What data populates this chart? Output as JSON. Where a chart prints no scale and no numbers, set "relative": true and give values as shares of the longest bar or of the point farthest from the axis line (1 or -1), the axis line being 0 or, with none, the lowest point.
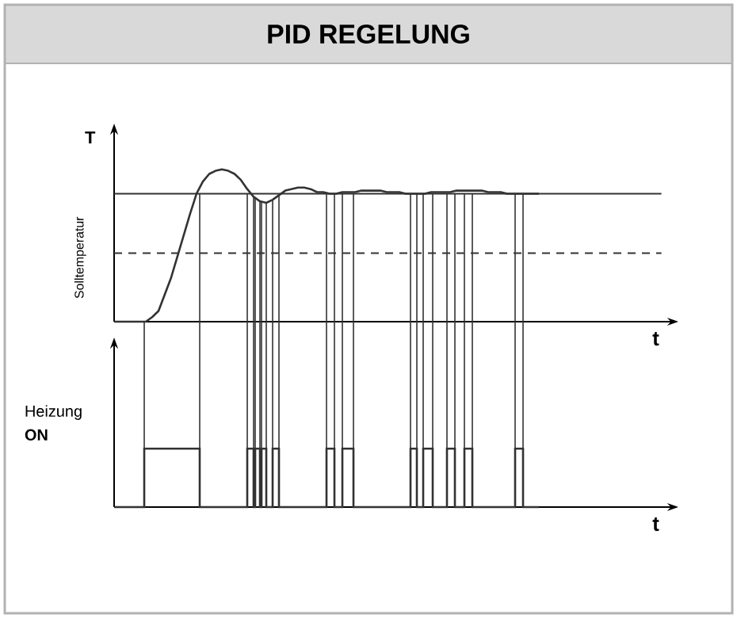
{
  "chart_data": [
    {
      "type": "line",
      "title": "PID REGELUNG",
      "xlabel": "t",
      "ylabel": "T",
      "relative": true,
      "marker": "none",
      "categories": [
        null,
        null,
        null,
        null,
        null,
        null,
        null,
        null,
        null,
        null,
        null,
        null,
        null,
        null,
        null,
        null,
        null,
        null,
        null,
        null,
        null,
        null,
        null,
        null,
        null,
        null,
        null,
        null,
        null,
        null,
        null,
        null,
        null,
        null,
        null,
        null,
        null,
        null,
        null,
        null,
        null,
        null,
        null,
        null,
        null,
        null,
        null,
        null,
        null,
        null,
        null,
        null,
        null,
        null,
        null,
        null,
        null,
        null,
        null,
        null,
        null,
        null,
        null,
        null,
        null,
        null,
        null,
        null
      ],
      "series": [
        {
          "color": "#333333",
          "values": [
            0,
            0,
            0,
            0,
            0,
            0,
            0.03,
            0.07,
            0.18,
            0.29,
            0.43,
            0.57,
            0.71,
            0.84,
            0.92,
            0.97,
            0.99,
            1,
            0.99,
            0.97,
            0.93,
            0.87,
            0.82,
            0.79,
            0.78,
            0.8,
            0.83,
            0.86,
            0.87,
            0.88,
            0.88,
            0.87,
            0.85,
            0.85,
            0.84,
            0.84,
            0.85,
            0.85,
            0.85,
            0.86,
            0.86,
            0.86,
            0.86,
            0.85,
            0.85,
            0.85,
            0.84,
            0.84,
            0.84,
            0.84,
            0.85,
            0.85,
            0.85,
            0.85,
            0.86,
            0.86,
            0.86,
            0.86,
            0.86,
            0.85,
            0.85,
            0.85,
            0.84,
            0.84,
            0.84,
            0.84,
            0.84,
            0.84
          ]
        }
      ],
      "ref_lines": [
        {
          "axis": "y",
          "value": 0.84,
          "label": "Solltemperatur",
          "color": "#333333",
          "line_style": "solid"
        },
        {
          "axis": "y",
          "value": 0.45,
          "color": "#333333",
          "line_style": "dashed"
        }
      ]
    },
    {
      "type": "step",
      "xlabel": "t",
      "ylabel": "Heizung **ON**",
      "relative": true,
      "marker": "none",
      "categories": [
        null,
        null,
        null,
        null,
        null,
        null,
        null,
        null,
        null,
        null,
        null,
        null,
        null,
        null,
        null,
        null,
        null,
        null,
        null,
        null,
        null,
        null,
        null,
        null,
        null,
        null,
        null,
        null,
        null,
        null,
        null,
        null,
        null,
        null,
        null,
        null,
        null,
        null,
        null,
        null,
        null,
        null,
        null,
        null,
        null,
        null,
        null,
        null,
        null,
        null,
        null,
        null,
        null,
        null,
        null,
        null,
        null,
        null,
        null,
        null,
        null,
        null,
        null,
        null,
        null,
        null,
        null,
        null,
        null,
        null,
        null,
        null,
        null,
        null,
        null,
        null,
        null,
        null,
        null,
        null,
        null,
        null,
        null,
        null,
        null,
        null,
        null,
        null,
        null,
        null,
        null,
        null,
        null,
        null,
        null,
        null,
        null,
        null,
        null,
        null,
        null,
        null,
        null,
        null,
        null,
        null,
        null,
        null,
        null,
        null,
        null,
        null,
        null,
        null,
        null,
        null,
        null,
        null,
        null,
        null,
        null,
        null,
        null,
        null,
        null,
        null,
        null,
        null,
        null,
        null,
        null,
        null,
        null,
        null,
        null,
        null,
        null,
        null,
        null,
        null,
        null,
        null,
        null,
        null,
        null,
        null,
        null,
        null,
        null,
        null,
        null,
        null,
        null,
        null,
        null,
        null,
        null,
        null,
        null,
        null,
        null,
        null,
        null,
        null,
        null,
        null,
        null,
        null,
        null,
        null,
        null,
        null,
        null,
        null,
        null,
        null,
        null,
        null,
        null,
        null,
        null,
        null,
        null,
        null,
        null,
        null,
        null,
        null,
        null,
        null,
        null,
        null,
        null,
        null,
        null,
        null,
        null,
        null,
        null,
        null,
        null,
        null,
        null,
        null,
        null,
        null,
        null,
        null,
        null,
        null,
        null,
        null,
        null,
        null,
        null,
        null,
        null,
        null,
        null,
        null,
        null,
        null,
        null,
        null,
        null,
        null,
        null,
        null,
        null,
        null,
        null,
        null,
        null,
        null,
        null,
        null,
        null,
        null,
        null,
        null,
        null,
        null,
        null,
        null,
        null,
        null,
        null,
        null,
        null,
        null,
        null,
        null,
        null,
        null,
        null,
        null,
        null,
        null,
        null,
        null,
        null,
        null,
        null,
        null,
        null,
        null,
        null,
        null,
        null
      ],
      "series": [
        {
          "color": "#333333",
          "values": [
            0,
            0,
            0,
            0,
            0,
            0,
            0,
            0,
            0,
            0,
            0,
            0,
            0,
            0,
            0,
            0,
            0,
            0,
            0,
            1,
            1,
            1,
            1,
            1,
            1,
            1,
            1,
            1,
            1,
            1,
            1,
            1,
            1,
            1,
            1,
            1,
            1,
            1,
            1,
            1,
            1,
            1,
            1,
            1,
            1,
            1,
            1,
            1,
            1,
            1,
            1,
            1,
            1,
            1,
            0,
            0,
            0,
            0,
            0,
            0,
            0,
            0,
            0,
            0,
            0,
            0,
            0,
            0,
            0,
            0,
            0,
            0,
            0,
            0,
            0,
            0,
            0,
            0,
            0,
            0,
            0,
            0,
            0,
            0,
            1,
            1,
            1,
            1,
            0,
            1,
            1,
            1,
            0,
            1,
            1,
            1,
            0,
            0,
            0,
            0,
            1,
            1,
            1,
            1,
            0,
            0,
            0,
            0,
            0,
            0,
            0,
            0,
            0,
            0,
            0,
            0,
            0,
            0,
            0,
            0,
            0,
            0,
            0,
            0,
            0,
            0,
            0,
            0,
            0,
            0,
            0,
            0,
            0,
            0,
            1,
            1,
            1,
            1,
            1,
            0,
            0,
            0,
            0,
            0,
            1,
            1,
            1,
            1,
            1,
            1,
            1,
            0,
            0,
            0,
            0,
            0,
            0,
            0,
            0,
            0,
            0,
            0,
            0,
            0,
            0,
            0,
            0,
            0,
            0,
            0,
            0,
            0,
            0,
            0,
            0,
            0,
            0,
            0,
            0,
            0,
            0,
            0,
            0,
            0,
            0,
            0,
            0,
            1,
            1,
            1,
            1,
            0,
            0,
            0,
            0,
            1,
            1,
            1,
            1,
            1,
            1,
            0,
            0,
            0,
            0,
            0,
            0,
            0,
            0,
            0,
            1,
            1,
            1,
            1,
            1,
            0,
            0,
            0,
            0,
            0,
            0,
            1,
            1,
            1,
            1,
            1,
            0,
            0,
            0,
            0,
            0,
            0,
            0,
            0,
            0,
            0,
            0,
            0,
            0,
            0,
            0,
            0,
            0,
            0,
            0,
            0,
            0,
            0,
            0,
            0,
            0,
            0,
            0,
            1,
            1,
            1,
            1,
            1,
            0,
            0,
            0,
            0,
            0,
            0,
            0,
            0,
            0,
            0,
            0
          ]
        }
      ]
    }
  ]
}
